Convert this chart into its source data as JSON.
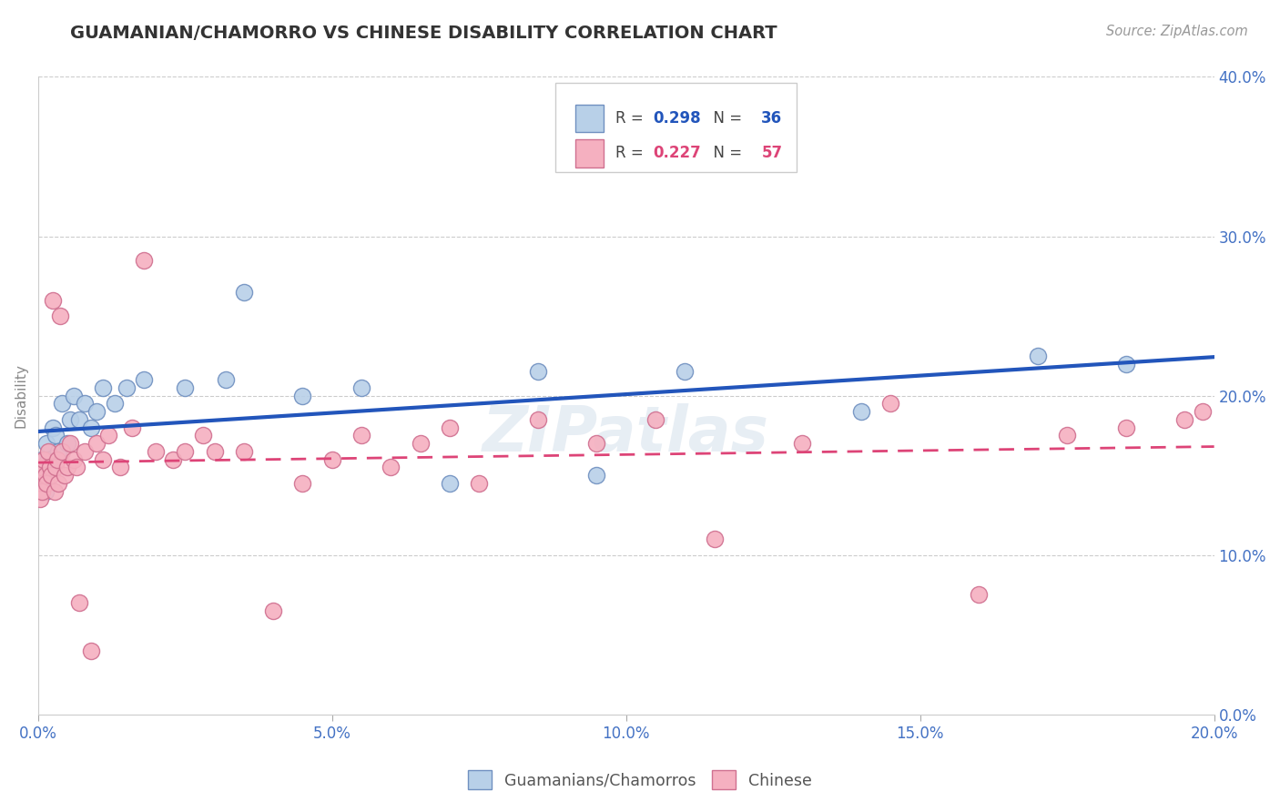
{
  "title": "GUAMANIAN/CHAMORRO VS CHINESE DISABILITY CORRELATION CHART",
  "source": "Source: ZipAtlas.com",
  "ylabel": "Disability",
  "r_blue": 0.298,
  "n_blue": 36,
  "r_pink": 0.227,
  "n_pink": 57,
  "legend_label_blue": "Guamanians/Chamorros",
  "legend_label_pink": "Chinese",
  "blue_fill": "#b8d0e8",
  "pink_fill": "#f5b0c0",
  "blue_edge": "#7090c0",
  "pink_edge": "#d07090",
  "blue_line_color": "#2255bb",
  "pink_line_color": "#dd4477",
  "guam_x": [
    0.02,
    0.04,
    0.06,
    0.08,
    0.1,
    0.12,
    0.15,
    0.18,
    0.2,
    0.25,
    0.3,
    0.35,
    0.4,
    0.5,
    0.55,
    0.6,
    0.7,
    0.8,
    0.9,
    1.0,
    1.1,
    1.3,
    1.5,
    1.8,
    2.5,
    3.2,
    3.5,
    4.5,
    5.5,
    7.0,
    8.5,
    9.5,
    11.0,
    14.0,
    17.0,
    18.5
  ],
  "guam_y": [
    15.0,
    14.5,
    16.0,
    15.5,
    15.0,
    14.0,
    17.0,
    16.0,
    15.5,
    18.0,
    17.5,
    16.5,
    19.5,
    17.0,
    18.5,
    20.0,
    18.5,
    19.5,
    18.0,
    19.0,
    20.5,
    19.5,
    20.5,
    21.0,
    20.5,
    21.0,
    26.5,
    20.0,
    20.5,
    14.5,
    21.5,
    15.0,
    21.5,
    19.0,
    22.5,
    22.0
  ],
  "chinese_x": [
    0.01,
    0.02,
    0.03,
    0.05,
    0.07,
    0.1,
    0.12,
    0.15,
    0.18,
    0.2,
    0.22,
    0.25,
    0.28,
    0.3,
    0.33,
    0.35,
    0.38,
    0.4,
    0.45,
    0.5,
    0.55,
    0.6,
    0.65,
    0.7,
    0.8,
    0.9,
    1.0,
    1.1,
    1.2,
    1.4,
    1.6,
    1.8,
    2.0,
    2.3,
    2.5,
    2.8,
    3.0,
    3.5,
    4.0,
    4.5,
    5.0,
    5.5,
    6.0,
    6.5,
    7.0,
    7.5,
    8.5,
    9.5,
    10.5,
    11.5,
    13.0,
    14.5,
    16.0,
    17.5,
    18.5,
    19.5,
    19.8
  ],
  "chinese_y": [
    14.5,
    15.0,
    13.5,
    15.5,
    14.0,
    16.0,
    15.0,
    14.5,
    16.5,
    15.5,
    15.0,
    26.0,
    14.0,
    15.5,
    16.0,
    14.5,
    25.0,
    16.5,
    15.0,
    15.5,
    17.0,
    16.0,
    15.5,
    7.0,
    16.5,
    4.0,
    17.0,
    16.0,
    17.5,
    15.5,
    18.0,
    28.5,
    16.5,
    16.0,
    16.5,
    17.5,
    16.5,
    16.5,
    6.5,
    14.5,
    16.0,
    17.5,
    15.5,
    17.0,
    18.0,
    14.5,
    18.5,
    17.0,
    18.5,
    11.0,
    17.0,
    19.5,
    7.5,
    17.5,
    18.0,
    18.5,
    19.0
  ]
}
